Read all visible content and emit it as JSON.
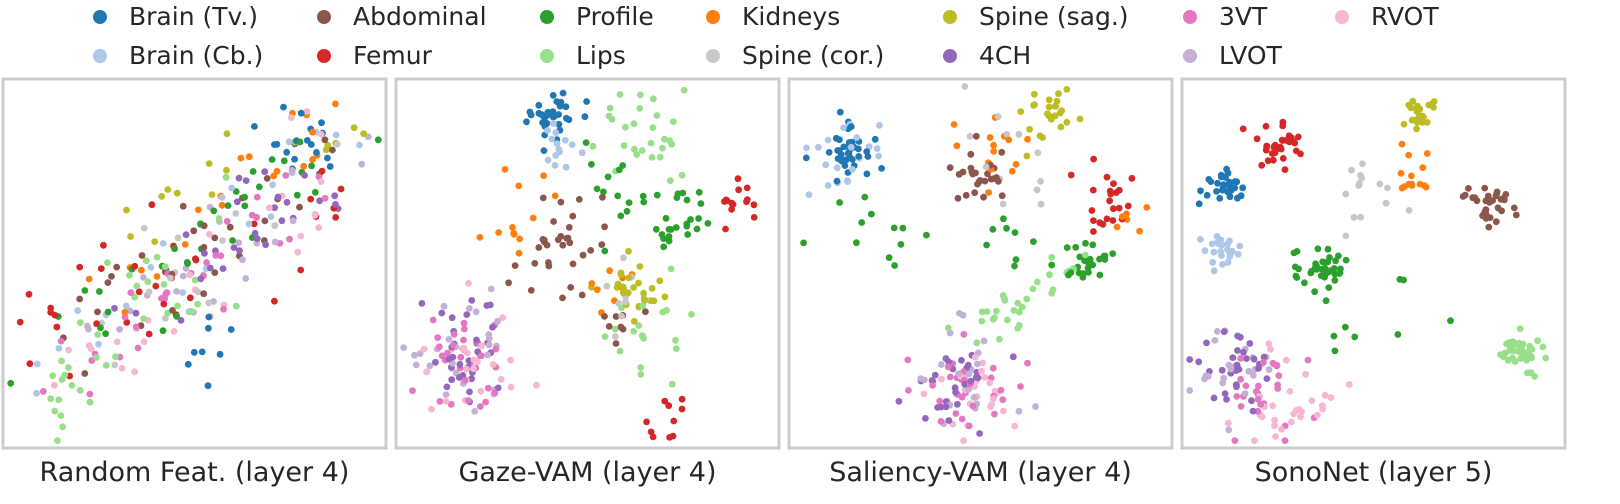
{
  "legend": {
    "items": [
      {
        "name": "Brain (Tv.)",
        "color": "#1f77b4"
      },
      {
        "name": "Brain (Cb.)",
        "color": "#aec7e8"
      },
      {
        "name": "Abdominal",
        "color": "#8c564b"
      },
      {
        "name": "Femur",
        "color": "#d62728"
      },
      {
        "name": "Profile",
        "color": "#2ca02c"
      },
      {
        "name": "Lips",
        "color": "#98df8a"
      },
      {
        "name": "Kidneys",
        "color": "#ff7f0e"
      },
      {
        "name": "Spine (cor.)",
        "color": "#c7c7c7"
      },
      {
        "name": "Spine (sag.)",
        "color": "#bcbd22"
      },
      {
        "name": "4CH",
        "color": "#9467bd"
      },
      {
        "name": "3VT",
        "color": "#e377c2"
      },
      {
        "name": "LVOT",
        "color": "#c5b0d5"
      },
      {
        "name": "RVOT",
        "color": "#f7b6d2"
      }
    ]
  },
  "chart_data": [
    {
      "type": "scatter",
      "title": "Random Feat. (layer 4)",
      "clusters": [
        {
          "series": "Brain (Tv.)",
          "shape": "blob",
          "cx": 0.78,
          "cy": 0.16,
          "spread": 0.06,
          "n": 18
        },
        {
          "series": "Brain (Tv.)",
          "shape": "blob",
          "cx": 0.55,
          "cy": 0.75,
          "spread": 0.04,
          "n": 8
        },
        {
          "series": "Brain (Cb.)",
          "shape": "band",
          "x0": 0.1,
          "y0": 0.85,
          "x1": 0.9,
          "y1": 0.1,
          "width": 0.1,
          "n": 22
        },
        {
          "series": "Abdominal",
          "shape": "band",
          "x0": 0.15,
          "y0": 0.7,
          "x1": 0.9,
          "y1": 0.15,
          "width": 0.12,
          "n": 30
        },
        {
          "series": "Femur",
          "shape": "band",
          "x0": 0.05,
          "y0": 0.7,
          "x1": 0.9,
          "y1": 0.3,
          "width": 0.14,
          "n": 34
        },
        {
          "series": "Profile",
          "shape": "band",
          "x0": 0.1,
          "y0": 0.75,
          "x1": 0.85,
          "y1": 0.2,
          "width": 0.14,
          "n": 34
        },
        {
          "series": "Lips",
          "shape": "band",
          "x0": 0.08,
          "y0": 0.95,
          "x1": 0.6,
          "y1": 0.35,
          "width": 0.14,
          "n": 38
        },
        {
          "series": "Kidneys",
          "shape": "band",
          "x0": 0.25,
          "y0": 0.6,
          "x1": 0.92,
          "y1": 0.08,
          "width": 0.1,
          "n": 20
        },
        {
          "series": "Spine (cor.)",
          "shape": "band",
          "x0": 0.3,
          "y0": 0.7,
          "x1": 0.9,
          "y1": 0.15,
          "width": 0.1,
          "n": 16
        },
        {
          "series": "Spine (sag.)",
          "shape": "band",
          "x0": 0.25,
          "y0": 0.4,
          "x1": 0.92,
          "y1": 0.12,
          "width": 0.08,
          "n": 16
        },
        {
          "series": "4CH",
          "shape": "band",
          "x0": 0.3,
          "y0": 0.65,
          "x1": 0.88,
          "y1": 0.2,
          "width": 0.12,
          "n": 28
        },
        {
          "series": "3VT",
          "shape": "band",
          "x0": 0.1,
          "y0": 0.8,
          "x1": 0.85,
          "y1": 0.25,
          "width": 0.14,
          "n": 30
        },
        {
          "series": "LVOT",
          "shape": "band",
          "x0": 0.2,
          "y0": 0.75,
          "x1": 0.9,
          "y1": 0.2,
          "width": 0.12,
          "n": 24
        },
        {
          "series": "RVOT",
          "shape": "band",
          "x0": 0.15,
          "y0": 0.8,
          "x1": 0.9,
          "y1": 0.25,
          "width": 0.14,
          "n": 26
        }
      ]
    },
    {
      "type": "scatter",
      "title": "Gaze-VAM (layer 4)",
      "clusters": [
        {
          "series": "Brain (Tv.)",
          "shape": "blob",
          "cx": 0.4,
          "cy": 0.1,
          "spread": 0.035,
          "n": 34
        },
        {
          "series": "Brain (Cb.)",
          "shape": "blob",
          "cx": 0.41,
          "cy": 0.19,
          "spread": 0.04,
          "n": 14
        },
        {
          "series": "Abdominal",
          "shape": "blob",
          "cx": 0.42,
          "cy": 0.44,
          "spread": 0.06,
          "n": 32
        },
        {
          "series": "Abdominal",
          "shape": "blob",
          "cx": 0.6,
          "cy": 0.64,
          "spread": 0.04,
          "n": 8
        },
        {
          "series": "Femur",
          "shape": "blob",
          "cx": 0.9,
          "cy": 0.33,
          "spread": 0.03,
          "n": 14
        },
        {
          "series": "Femur",
          "shape": "blob",
          "cx": 0.7,
          "cy": 0.92,
          "spread": 0.03,
          "n": 10
        },
        {
          "series": "Profile",
          "shape": "blob",
          "cx": 0.75,
          "cy": 0.37,
          "spread": 0.05,
          "n": 24
        },
        {
          "series": "Profile",
          "shape": "blob",
          "cx": 0.6,
          "cy": 0.3,
          "spread": 0.06,
          "n": 14
        },
        {
          "series": "Lips",
          "shape": "blob",
          "cx": 0.64,
          "cy": 0.15,
          "spread": 0.06,
          "n": 28
        },
        {
          "series": "Lips",
          "shape": "blob",
          "cx": 0.67,
          "cy": 0.7,
          "spread": 0.1,
          "n": 18
        },
        {
          "series": "Kidneys",
          "shape": "blob",
          "cx": 0.33,
          "cy": 0.38,
          "spread": 0.04,
          "n": 12
        },
        {
          "series": "Kidneys",
          "shape": "blob",
          "cx": 0.57,
          "cy": 0.55,
          "spread": 0.04,
          "n": 8
        },
        {
          "series": "Spine (cor.)",
          "shape": "blob",
          "cx": 0.62,
          "cy": 0.58,
          "spread": 0.05,
          "n": 10
        },
        {
          "series": "Spine (sag.)",
          "shape": "blob",
          "cx": 0.62,
          "cy": 0.58,
          "spread": 0.04,
          "n": 26
        },
        {
          "series": "4CH",
          "shape": "blob",
          "cx": 0.16,
          "cy": 0.74,
          "spread": 0.07,
          "n": 32
        },
        {
          "series": "3VT",
          "shape": "blob",
          "cx": 0.2,
          "cy": 0.76,
          "spread": 0.07,
          "n": 30
        },
        {
          "series": "LVOT",
          "shape": "blob",
          "cx": 0.18,
          "cy": 0.73,
          "spread": 0.08,
          "n": 26
        },
        {
          "series": "RVOT",
          "shape": "blob",
          "cx": 0.2,
          "cy": 0.78,
          "spread": 0.07,
          "n": 24
        }
      ]
    },
    {
      "type": "scatter",
      "title": "Saliency-VAM (layer 4)",
      "clusters": [
        {
          "series": "Brain (Tv.)",
          "shape": "blob",
          "cx": 0.15,
          "cy": 0.2,
          "spread": 0.035,
          "n": 40
        },
        {
          "series": "Brain (Cb.)",
          "shape": "blob",
          "cx": 0.14,
          "cy": 0.19,
          "spread": 0.055,
          "n": 20
        },
        {
          "series": "Abdominal",
          "shape": "blob",
          "cx": 0.51,
          "cy": 0.26,
          "spread": 0.04,
          "n": 26
        },
        {
          "series": "Femur",
          "shape": "blob",
          "cx": 0.85,
          "cy": 0.33,
          "spread": 0.04,
          "n": 22
        },
        {
          "series": "Profile",
          "shape": "blob",
          "cx": 0.78,
          "cy": 0.5,
          "spread": 0.025,
          "n": 26
        },
        {
          "series": "Profile",
          "shape": "band",
          "x0": 0.1,
          "y0": 0.4,
          "x1": 0.7,
          "y1": 0.45,
          "width": 0.1,
          "n": 20
        },
        {
          "series": "Lips",
          "shape": "band",
          "x0": 0.45,
          "y0": 0.7,
          "x1": 0.75,
          "y1": 0.5,
          "width": 0.06,
          "n": 30
        },
        {
          "series": "Kidneys",
          "shape": "blob",
          "cx": 0.55,
          "cy": 0.17,
          "spread": 0.05,
          "n": 14
        },
        {
          "series": "Kidneys",
          "shape": "blob",
          "cx": 0.9,
          "cy": 0.38,
          "spread": 0.03,
          "n": 6
        },
        {
          "series": "Spine (cor.)",
          "shape": "blob",
          "cx": 0.57,
          "cy": 0.18,
          "spread": 0.08,
          "n": 12
        },
        {
          "series": "Spine (sag.)",
          "shape": "blob",
          "cx": 0.67,
          "cy": 0.1,
          "spread": 0.04,
          "n": 24
        },
        {
          "series": "4CH",
          "shape": "blob",
          "cx": 0.43,
          "cy": 0.82,
          "spread": 0.06,
          "n": 28
        },
        {
          "series": "3VT",
          "shape": "blob",
          "cx": 0.46,
          "cy": 0.84,
          "spread": 0.06,
          "n": 30
        },
        {
          "series": "LVOT",
          "shape": "blob",
          "cx": 0.44,
          "cy": 0.82,
          "spread": 0.07,
          "n": 22
        },
        {
          "series": "RVOT",
          "shape": "blob",
          "cx": 0.48,
          "cy": 0.84,
          "spread": 0.06,
          "n": 26
        }
      ]
    },
    {
      "type": "scatter",
      "title": "SonoNet (layer 5)",
      "clusters": [
        {
          "series": "Brain (Tv.)",
          "shape": "blob",
          "cx": 0.1,
          "cy": 0.3,
          "spread": 0.03,
          "n": 32
        },
        {
          "series": "Brain (Cb.)",
          "shape": "blob",
          "cx": 0.1,
          "cy": 0.47,
          "spread": 0.03,
          "n": 24
        },
        {
          "series": "Abdominal",
          "shape": "blob",
          "cx": 0.8,
          "cy": 0.32,
          "spread": 0.03,
          "n": 30
        },
        {
          "series": "Femur",
          "shape": "blob",
          "cx": 0.25,
          "cy": 0.17,
          "spread": 0.03,
          "n": 34
        },
        {
          "series": "Profile",
          "shape": "blob",
          "cx": 0.37,
          "cy": 0.52,
          "spread": 0.035,
          "n": 38
        },
        {
          "series": "Profile",
          "shape": "blob",
          "cx": 0.45,
          "cy": 0.65,
          "spread": 0.08,
          "n": 8
        },
        {
          "series": "Lips",
          "shape": "blob",
          "cx": 0.89,
          "cy": 0.74,
          "spread": 0.03,
          "n": 38
        },
        {
          "series": "Kidneys",
          "shape": "blob",
          "cx": 0.6,
          "cy": 0.25,
          "spread": 0.04,
          "n": 14
        },
        {
          "series": "Spine (cor.)",
          "shape": "blob",
          "cx": 0.49,
          "cy": 0.3,
          "spread": 0.05,
          "n": 14
        },
        {
          "series": "Spine (sag.)",
          "shape": "blob",
          "cx": 0.62,
          "cy": 0.1,
          "spread": 0.02,
          "n": 22
        },
        {
          "series": "4CH",
          "shape": "blob",
          "cx": 0.13,
          "cy": 0.78,
          "spread": 0.05,
          "n": 30
        },
        {
          "series": "3VT",
          "shape": "blob",
          "cx": 0.22,
          "cy": 0.85,
          "spread": 0.05,
          "n": 24
        },
        {
          "series": "LVOT",
          "shape": "blob",
          "cx": 0.15,
          "cy": 0.8,
          "spread": 0.06,
          "n": 22
        },
        {
          "series": "RVOT",
          "shape": "blob",
          "cx": 0.28,
          "cy": 0.87,
          "spread": 0.06,
          "n": 30
        }
      ]
    }
  ]
}
